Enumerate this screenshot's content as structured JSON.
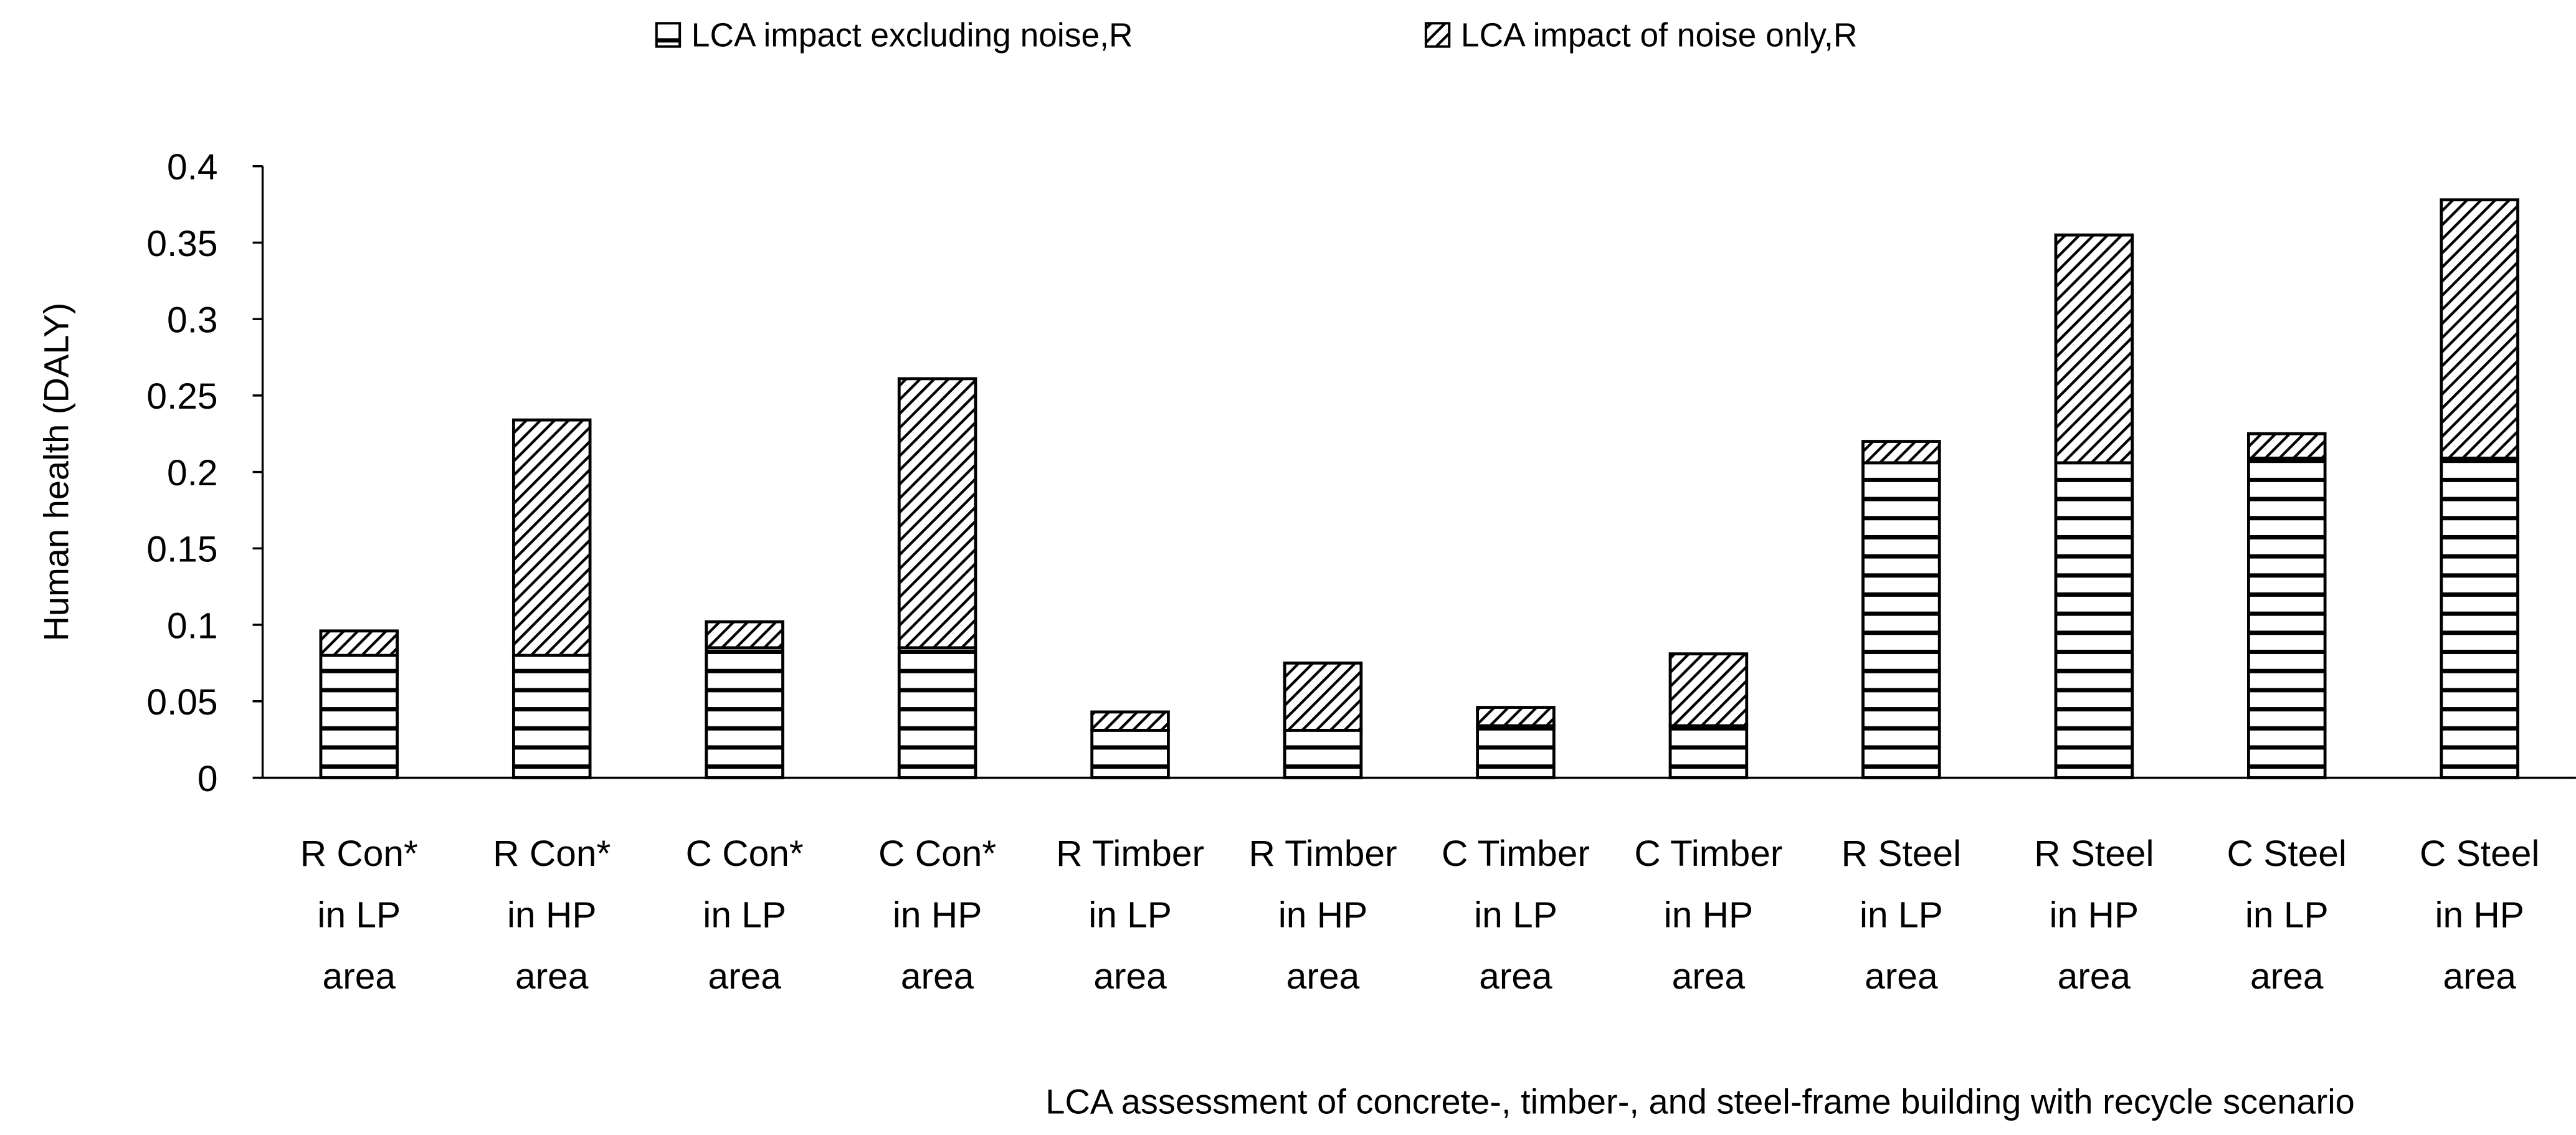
{
  "chart_data": {
    "type": "bar",
    "stacked": true,
    "title": "",
    "xlabel": "LCA assessment of concrete-, timber-, and steel-frame building with recycle scenario",
    "ylabel": "Human health (DALY)",
    "ylim": [
      0,
      0.4
    ],
    "yticks": [
      "0",
      "0.05",
      "0.1",
      "0.15",
      "0.2",
      "0.25",
      "0.3",
      "0.35",
      "0.4"
    ],
    "grid": false,
    "legend_position": "top",
    "categories": [
      [
        "R Con*",
        "in LP",
        "area"
      ],
      [
        "R Con*",
        "in HP",
        "area"
      ],
      [
        "C Con*",
        "in LP",
        "area"
      ],
      [
        "C Con*",
        "in HP",
        "area"
      ],
      [
        "R Timber",
        "in LP",
        "area"
      ],
      [
        "R Timber",
        "in HP",
        "area"
      ],
      [
        "C Timber",
        "in LP",
        "area"
      ],
      [
        "C Timber",
        "in HP",
        "area"
      ],
      [
        "R Steel",
        "in LP",
        "area"
      ],
      [
        "R Steel",
        "in HP",
        "area"
      ],
      [
        "C Steel",
        "in LP",
        "area"
      ],
      [
        "C Steel",
        "in HP",
        "area"
      ]
    ],
    "series": [
      {
        "name": "LCA impact excluding noise,R",
        "pattern": "horizontal-lines",
        "values": [
          0.08,
          0.08,
          0.085,
          0.085,
          0.031,
          0.031,
          0.034,
          0.034,
          0.206,
          0.206,
          0.209,
          0.209
        ]
      },
      {
        "name": "LCA impact of noise only,R",
        "pattern": "diagonal-hatch",
        "values": [
          0.016,
          0.154,
          0.017,
          0.176,
          0.012,
          0.044,
          0.012,
          0.047,
          0.014,
          0.149,
          0.016,
          0.169
        ]
      }
    ]
  }
}
